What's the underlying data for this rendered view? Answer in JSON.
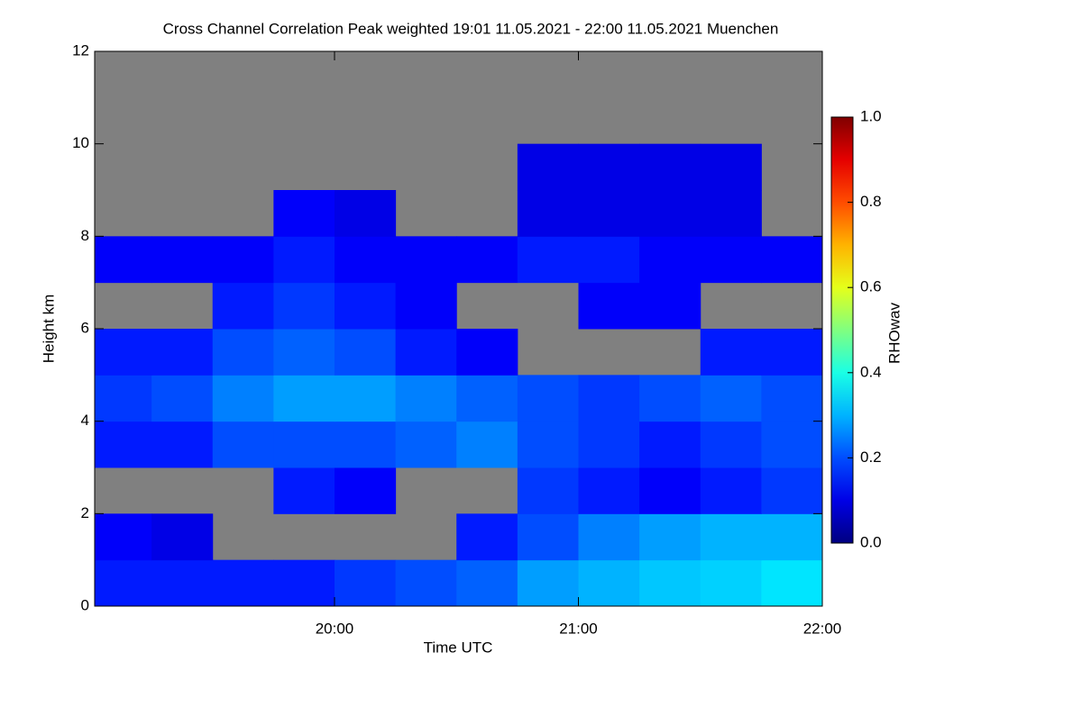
{
  "chart_data": {
    "type": "heatmap",
    "title": "Cross Channel Correlation Peak weighted   19:01 11.05.2021 - 22:00 11.05.2021 Muenchen",
    "xlabel": "Time UTC",
    "ylabel": "Height km",
    "xlim": [
      19.0167,
      22.0
    ],
    "xticks": [
      {
        "value": 20,
        "label": "20:00"
      },
      {
        "value": 21,
        "label": "21:00"
      },
      {
        "value": 22,
        "label": "22:00"
      }
    ],
    "ylim": [
      0,
      12
    ],
    "yticks": [
      0,
      2,
      4,
      6,
      8,
      10,
      12
    ],
    "xbins": [
      19.0167,
      19.25,
      19.5,
      19.75,
      20.0,
      20.25,
      20.5,
      20.75,
      21.0,
      21.25,
      21.5,
      21.75,
      22.0
    ],
    "ybins": [
      0,
      1,
      2,
      3,
      4,
      5,
      6,
      7,
      8,
      9,
      10,
      11,
      12
    ],
    "z": [
      [
        0.15,
        0.15,
        0.15,
        0.15,
        0.18,
        0.2,
        0.22,
        0.28,
        0.3,
        0.32,
        0.33,
        0.35
      ],
      [
        0.12,
        0.1,
        null,
        null,
        null,
        null,
        0.15,
        0.2,
        0.25,
        0.28,
        0.3,
        0.3
      ],
      [
        null,
        null,
        null,
        0.15,
        0.12,
        null,
        null,
        0.18,
        0.15,
        0.12,
        0.15,
        0.18
      ],
      [
        0.15,
        0.15,
        0.2,
        0.2,
        0.2,
        0.22,
        0.25,
        0.2,
        0.18,
        0.15,
        0.18,
        0.2
      ],
      [
        0.18,
        0.2,
        0.25,
        0.28,
        0.28,
        0.25,
        0.22,
        0.2,
        0.18,
        0.2,
        0.22,
        0.2
      ],
      [
        0.15,
        0.15,
        0.2,
        0.22,
        0.2,
        0.15,
        0.12,
        null,
        null,
        null,
        0.15,
        0.15
      ],
      [
        null,
        null,
        0.15,
        0.18,
        0.15,
        0.12,
        null,
        null,
        0.12,
        0.12,
        null,
        null
      ],
      [
        0.12,
        0.12,
        0.12,
        0.15,
        0.12,
        0.12,
        0.12,
        0.15,
        0.15,
        0.12,
        0.12,
        0.12
      ],
      [
        null,
        null,
        null,
        0.12,
        0.1,
        null,
        null,
        0.1,
        0.1,
        0.1,
        0.1,
        null
      ],
      [
        null,
        null,
        null,
        null,
        null,
        null,
        null,
        0.1,
        0.1,
        0.1,
        0.1,
        null
      ],
      [
        null,
        null,
        null,
        null,
        null,
        null,
        null,
        null,
        null,
        null,
        null,
        null
      ],
      [
        null,
        null,
        null,
        null,
        null,
        null,
        null,
        null,
        null,
        null,
        null,
        null
      ]
    ],
    "missing_color": "#808080",
    "colormap": "jet",
    "colorbar_label": "RHOwav",
    "zlim": [
      0,
      1
    ],
    "zticks": [
      {
        "value": 0,
        "label": "0.0"
      },
      0.2,
      0.4,
      0.6,
      0.8,
      {
        "value": 1,
        "label": "1.0"
      }
    ]
  }
}
